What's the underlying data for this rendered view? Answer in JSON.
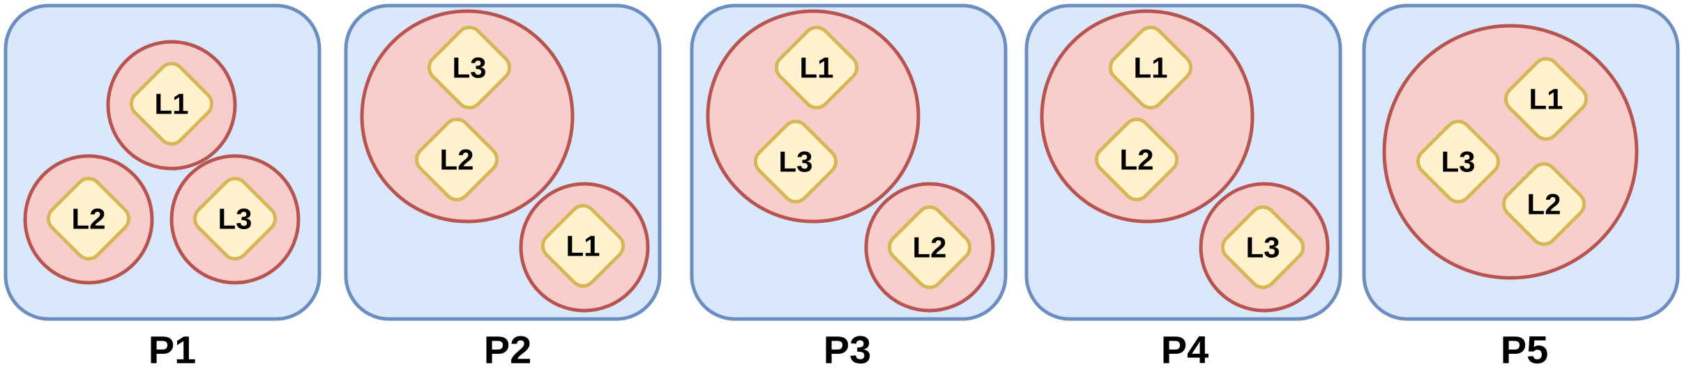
{
  "panels": [
    {
      "label": "P1",
      "groups": [
        {
          "leaves": [
            "L1"
          ]
        },
        {
          "leaves": [
            "L2"
          ]
        },
        {
          "leaves": [
            "L3"
          ]
        }
      ]
    },
    {
      "label": "P2",
      "groups": [
        {
          "leaves": [
            "L3",
            "L2"
          ]
        },
        {
          "leaves": [
            "L1"
          ]
        }
      ]
    },
    {
      "label": "P3",
      "groups": [
        {
          "leaves": [
            "L1",
            "L3"
          ]
        },
        {
          "leaves": [
            "L2"
          ]
        }
      ]
    },
    {
      "label": "P4",
      "groups": [
        {
          "leaves": [
            "L1",
            "L2"
          ]
        },
        {
          "leaves": [
            "L3"
          ]
        }
      ]
    },
    {
      "label": "P5",
      "groups": [
        {
          "leaves": [
            "L1",
            "L3",
            "L2"
          ]
        }
      ]
    }
  ],
  "colors": {
    "panel_fill": "#dae8fc",
    "panel_stroke": "#6c8ebf",
    "group_fill": "#f8cecc",
    "group_stroke": "#b85450",
    "leaf_fill": "#fff2cc",
    "leaf_stroke": "#d6b656",
    "text": "#000000"
  }
}
